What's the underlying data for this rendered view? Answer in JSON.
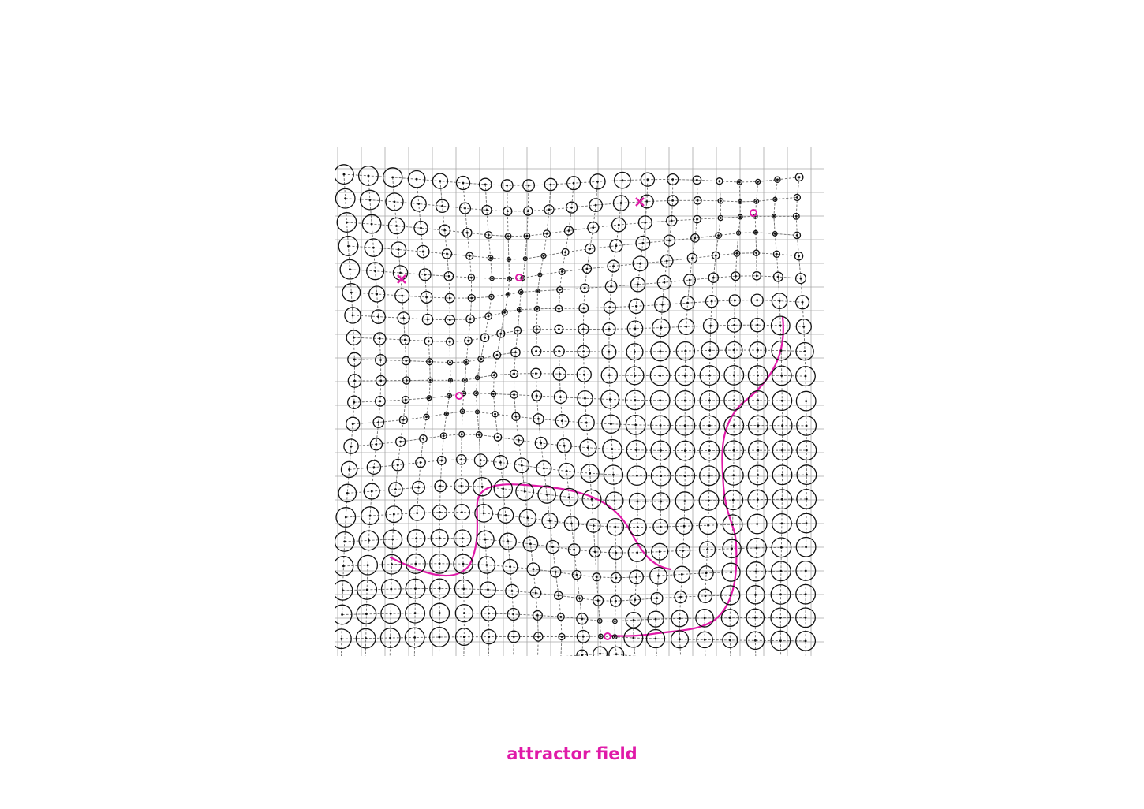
{
  "caption": "attractor field",
  "colors": {
    "accent": "#e01aa8",
    "grid": "#a8a8a8",
    "field_lines": "#6a6a6a",
    "nodes": "#111111",
    "background": "#ffffff"
  },
  "icons": {
    "attractor_marker": "cross-icon",
    "attractor_point": "star-burst-icon"
  }
}
